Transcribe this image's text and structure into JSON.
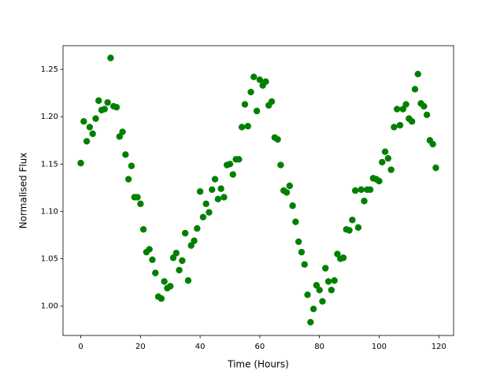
{
  "chart_data": {
    "type": "scatter",
    "x_label": "Time (Hours)",
    "y_label": "Normalised Flux",
    "color": "#008000",
    "x": [
      0,
      1,
      2,
      3,
      4,
      5,
      6,
      7,
      8,
      9,
      10,
      11,
      12,
      13,
      14,
      15,
      16,
      17,
      18,
      19,
      20,
      21,
      22,
      23,
      24,
      25,
      26,
      27,
      28,
      29,
      30,
      31,
      32,
      33,
      34,
      35,
      36,
      37,
      38,
      39,
      40,
      41,
      42,
      43,
      44,
      45,
      46,
      47,
      48,
      49,
      50,
      51,
      52,
      53,
      54,
      55,
      56,
      57,
      58,
      59,
      60,
      61,
      62,
      63,
      64,
      65,
      66,
      67,
      68,
      69,
      70,
      71,
      72,
      73,
      74,
      75,
      76,
      77,
      78,
      79,
      80,
      81,
      82,
      83,
      84,
      85,
      86,
      87,
      88,
      89,
      90,
      91,
      92,
      93,
      94,
      95,
      96,
      97,
      98,
      99,
      100,
      101,
      102,
      103,
      104,
      105,
      106,
      107,
      108,
      109,
      110,
      111,
      112,
      113,
      114,
      115,
      116,
      117,
      118,
      119
    ],
    "values": [
      1.151,
      1.195,
      1.174,
      1.189,
      1.182,
      1.198,
      1.217,
      1.207,
      1.208,
      1.215,
      1.262,
      1.211,
      1.21,
      1.179,
      1.184,
      1.16,
      1.134,
      1.148,
      1.115,
      1.115,
      1.108,
      1.081,
      1.057,
      1.06,
      1.049,
      1.035,
      1.01,
      1.008,
      1.026,
      1.019,
      1.021,
      1.051,
      1.056,
      1.038,
      1.048,
      1.077,
      1.027,
      1.064,
      1.069,
      1.082,
      1.121,
      1.094,
      1.108,
      1.099,
      1.123,
      1.134,
      1.113,
      1.124,
      1.115,
      1.149,
      1.15,
      1.139,
      1.155,
      1.155,
      1.189,
      1.213,
      1.19,
      1.226,
      1.242,
      1.206,
      1.239,
      1.233,
      1.237,
      1.212,
      1.216,
      1.178,
      1.176,
      1.149,
      1.122,
      1.12,
      1.127,
      1.106,
      1.089,
      1.068,
      1.057,
      1.044,
      1.012,
      0.983,
      0.997,
      1.022,
      1.017,
      1.005,
      1.04,
      1.026,
      1.017,
      1.027,
      1.055,
      1.05,
      1.051,
      1.081,
      1.08,
      1.091,
      1.122,
      1.083,
      1.123,
      1.111,
      1.123,
      1.123,
      1.135,
      1.134,
      1.132,
      1.152,
      1.163,
      1.156,
      1.144,
      1.189,
      1.208,
      1.191,
      1.208,
      1.213,
      1.198,
      1.195,
      1.229,
      1.245,
      1.214,
      1.211,
      1.202,
      1.175,
      1.171,
      1.146
    ],
    "xlim": [
      -5.95,
      124.95
    ],
    "xticks": [
      0,
      20,
      40,
      60,
      80,
      100,
      120
    ],
    "ylim": [
      0.969,
      1.275
    ],
    "yticks": [
      {
        "value": 1.0,
        "label": "1.00"
      },
      1.05,
      {
        "value": 1.1,
        "label": "1.10"
      },
      1.15,
      {
        "value": 1.2,
        "label": "1.20"
      },
      1.25
    ]
  }
}
